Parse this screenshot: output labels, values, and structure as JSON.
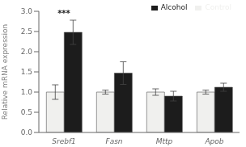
{
  "chart_data": {
    "type": "bar",
    "categories": [
      "Srebf1",
      "Fasn",
      "Mttp",
      "Apob"
    ],
    "series": [
      {
        "name": "Control",
        "color": "#f0f0ee",
        "values": [
          1.0,
          1.0,
          1.0,
          1.0
        ],
        "errors": [
          0.18,
          0.05,
          0.08,
          0.05
        ]
      },
      {
        "name": "Alcohol",
        "color": "#1c1c1c",
        "values": [
          2.48,
          1.47,
          0.9,
          1.12
        ],
        "errors": [
          0.3,
          0.28,
          0.12,
          0.1
        ]
      }
    ],
    "ylabel": "Relative mRNA expression",
    "ylim": [
      0,
      3.0
    ],
    "yticks": [
      {
        "value": 0,
        "label": "0.0"
      },
      {
        "value": 0.5,
        "label": "0.5"
      },
      {
        "value": 1,
        "label": "1.0"
      },
      {
        "value": 1.5,
        "label": "1.5"
      },
      {
        "value": 2,
        "label": "2.0"
      },
      {
        "value": 2.5,
        "label": "2.5"
      },
      {
        "value": 3,
        "label": "3.0"
      }
    ],
    "annotations": [
      {
        "text": "***",
        "category": "Srebf1"
      }
    ],
    "legend": "upper right",
    "grid": false
  }
}
